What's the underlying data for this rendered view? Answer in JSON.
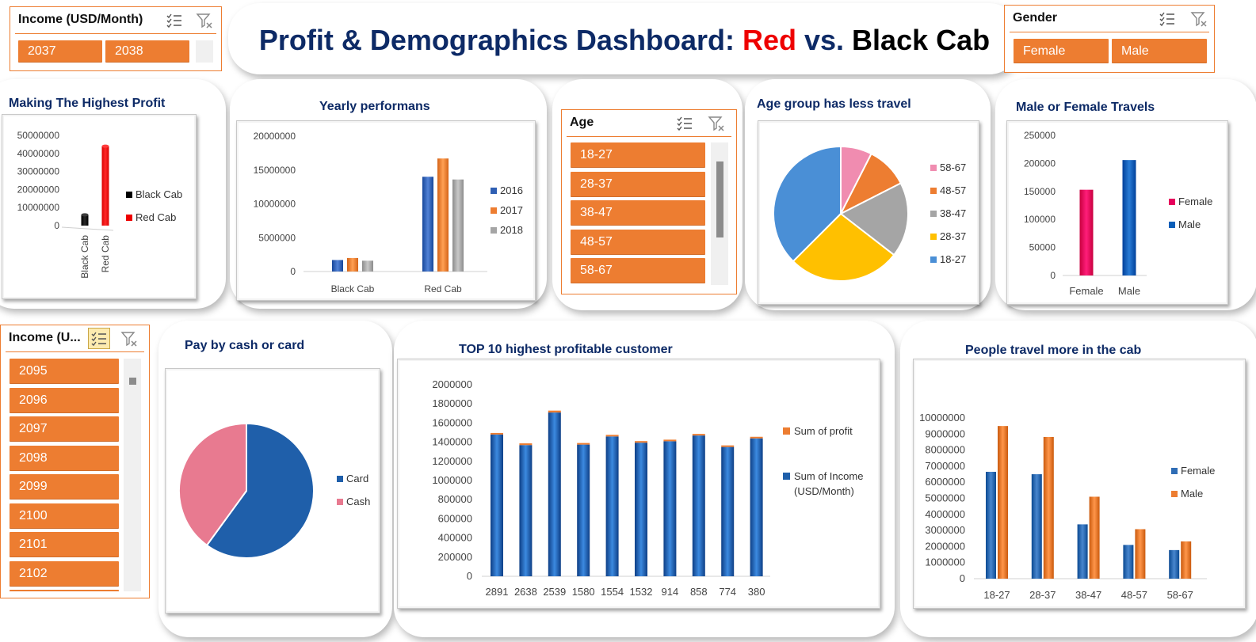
{
  "dashboard": {
    "title_prefix": "Profit & Demographics Dashboard: ",
    "title_red": "Red",
    "title_mid": " vs. ",
    "title_black": "Black Cab"
  },
  "colors": {
    "accent": "#ed7d31",
    "title_navy": "#0d2a66",
    "red_cab": "#ee0000",
    "black_cab": "#000000",
    "blue": "#2f5fb3",
    "orange": "#ed7d31",
    "gray": "#a5a5a5",
    "yellow": "#ffc000",
    "lightblue": "#4a8fd6",
    "female_pink": "#e6005c",
    "male_blue": "#0b5eb8",
    "card_blue": "#1f5faa",
    "cash_pink": "#e87a90"
  },
  "slicers": {
    "income_top": {
      "title": "Income (USD/Month)",
      "items": [
        "2037",
        "2038"
      ],
      "icons": [
        "multi-select-icon",
        "clear-filter-icon"
      ]
    },
    "gender": {
      "title": "Gender",
      "items": [
        "Female",
        "Male"
      ],
      "icons": [
        "multi-select-icon",
        "clear-filter-icon"
      ]
    },
    "age": {
      "title": "Age",
      "items": [
        "18-27",
        "28-37",
        "38-47",
        "48-57",
        "58-67"
      ],
      "icons": [
        "multi-select-icon",
        "clear-filter-icon"
      ]
    },
    "income_left": {
      "title": "Income (U...",
      "items": [
        "2095",
        "2096",
        "2097",
        "2098",
        "2099",
        "2100",
        "2101",
        "2102"
      ],
      "icons": [
        "multi-select-icon",
        "clear-filter-icon"
      ]
    }
  },
  "chart_data": [
    {
      "id": "highest-profit",
      "type": "bar",
      "title": "Making The Highest Profit",
      "categories": [
        "Black Cab",
        "Red Cab"
      ],
      "series": [
        {
          "name": "Black Cab",
          "values": [
            6000000,
            null
          ],
          "color": "#000000"
        },
        {
          "name": "Red Cab",
          "values": [
            null,
            44000000
          ],
          "color": "#ee0000"
        }
      ],
      "yticks": [
        "0",
        "10000000",
        "20000000",
        "30000000",
        "40000000",
        "50000000"
      ],
      "ylim": [
        0,
        50000000
      ],
      "legend": [
        "Black Cab",
        "Red Cab"
      ],
      "legend_position": "right"
    },
    {
      "id": "yearly-performance",
      "type": "bar",
      "title": "Yearly performans",
      "categories": [
        "Black Cab",
        "Red Cab"
      ],
      "series": [
        {
          "name": "2016",
          "values": [
            1700000,
            14000000
          ],
          "color": "#2f5fb3"
        },
        {
          "name": "2017",
          "values": [
            2000000,
            16700000
          ],
          "color": "#ed7d31"
        },
        {
          "name": "2018",
          "values": [
            1600000,
            13600000
          ],
          "color": "#a5a5a5"
        }
      ],
      "yticks": [
        "0",
        "5000000",
        "10000000",
        "15000000",
        "20000000"
      ],
      "ylim": [
        0,
        20000000
      ],
      "legend_position": "right"
    },
    {
      "id": "age-group-pie",
      "type": "pie",
      "title": "Age group has less travel",
      "slices": [
        {
          "label": "58-67",
          "value": 7.5,
          "color": "#f08cb0"
        },
        {
          "label": "48-57",
          "value": 10,
          "color": "#ed7d31"
        },
        {
          "label": "38-47",
          "value": 18,
          "color": "#a5a5a5"
        },
        {
          "label": "28-37",
          "value": 27,
          "color": "#ffc000"
        },
        {
          "label": "18-27",
          "value": 37.5,
          "color": "#4a8fd6"
        }
      ],
      "legend": [
        "58-67",
        "48-57",
        "38-47",
        "28-37",
        "18-27"
      ],
      "legend_position": "right"
    },
    {
      "id": "gender-travels",
      "type": "bar",
      "title": "Male or Female Travels",
      "categories": [
        "Female",
        "Male"
      ],
      "series": [
        {
          "name": "Female",
          "values": [
            153000,
            null
          ],
          "color": "#e6005c"
        },
        {
          "name": "Male",
          "values": [
            null,
            206000
          ],
          "color": "#0b5eb8"
        }
      ],
      "yticks": [
        "0",
        "50000",
        "100000",
        "150000",
        "200000",
        "250000"
      ],
      "ylim": [
        0,
        250000
      ],
      "legend_position": "right"
    },
    {
      "id": "pay-method",
      "type": "pie",
      "title": "Pay by cash or card",
      "slices": [
        {
          "label": "Card",
          "value": 60,
          "color": "#1f5faa"
        },
        {
          "label": "Cash",
          "value": 40,
          "color": "#e87a90"
        }
      ],
      "legend": [
        "Card",
        "Cash"
      ],
      "legend_position": "right"
    },
    {
      "id": "top10-customers",
      "type": "bar",
      "stacked": true,
      "title": "TOP 10 highest profitable customer",
      "categories": [
        "2891",
        "2638",
        "2539",
        "1580",
        "1554",
        "1532",
        "914",
        "858",
        "774",
        "380"
      ],
      "series": [
        {
          "name": "Sum of Income (USD/Month)",
          "values": [
            1480000,
            1370000,
            1710000,
            1375000,
            1460000,
            1395000,
            1410000,
            1470000,
            1350000,
            1440000
          ],
          "color": "#1f5faa"
        },
        {
          "name": "Sum of profit",
          "values": [
            15000,
            18000,
            20000,
            12000,
            14000,
            14000,
            13000,
            16000,
            11000,
            15000
          ],
          "color": "#ed7d31"
        }
      ],
      "legend": [
        "Sum of profit",
        "Sum of Income (USD/Month)"
      ],
      "legend_line1": "Sum of Income",
      "legend_line2": "(USD/Month)",
      "yticks": [
        "0",
        "200000",
        "400000",
        "600000",
        "800000",
        "1000000",
        "1200000",
        "1400000",
        "1600000",
        "1800000",
        "2000000"
      ],
      "ylim": [
        0,
        2000000
      ],
      "legend_position": "right"
    },
    {
      "id": "age-gender-travel",
      "type": "bar",
      "title": "People travel more in the cab",
      "categories": [
        "18-27",
        "28-37",
        "38-47",
        "48-57",
        "58-67"
      ],
      "series": [
        {
          "name": "Female",
          "values": [
            6650000,
            6500000,
            3380000,
            2100000,
            1780000
          ],
          "color": "#2f6db5"
        },
        {
          "name": "Male",
          "values": [
            9500000,
            8820000,
            5100000,
            3080000,
            2320000
          ],
          "color": "#ed7d31"
        }
      ],
      "yticks": [
        "0",
        "1000000",
        "2000000",
        "3000000",
        "4000000",
        "5000000",
        "6000000",
        "7000000",
        "8000000",
        "9000000",
        "10000000"
      ],
      "ylim": [
        0,
        10000000
      ],
      "legend_position": "right"
    }
  ]
}
